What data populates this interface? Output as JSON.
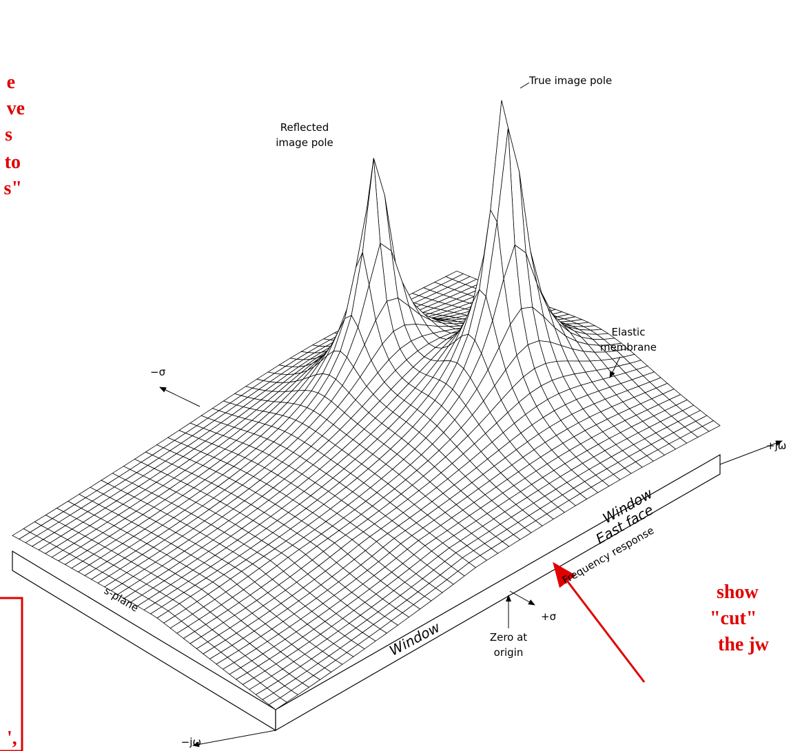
{
  "red_notes_left": [
    "e",
    "ve",
    "s",
    "to",
    "s\""
  ],
  "red_notes_right": [
    "show",
    "\"cut\"",
    "the jw"
  ],
  "red_box_text": "',",
  "labels": {
    "reflected_pole": [
      "Reflected",
      "image pole"
    ],
    "true_pole": "True image pole",
    "elastic_membrane": [
      "Elastic",
      "membrane"
    ],
    "minus_sigma": "−σ",
    "plus_jw": "+jω",
    "window_east": "Window",
    "east_face": "East face",
    "frequency_response": "Frequency response",
    "s_plane": "s-plane",
    "window_front": "Window",
    "plus_sigma": "+σ",
    "zero_at_origin": [
      "Zero at",
      "origin"
    ],
    "minus_jw": "−jω"
  }
}
